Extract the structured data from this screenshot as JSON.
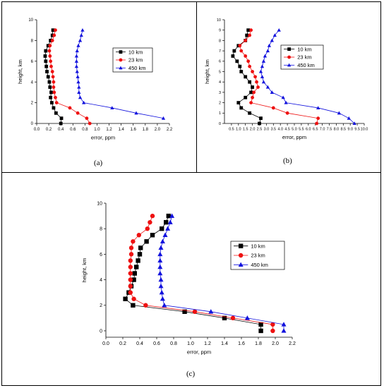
{
  "captions": {
    "a": "(a)",
    "b": "(b)",
    "c": "(c)"
  },
  "chart_data": [
    {
      "type": "line",
      "xlabel": "error, ppm",
      "ylabel": "height, km",
      "xlim": [
        0.0,
        2.2
      ],
      "ylim": [
        0,
        10
      ],
      "xticks": [
        "0.0",
        "0.2",
        "0.4",
        "0.6",
        "0.8",
        "1.0",
        "1.2",
        "1.4",
        "1.6",
        "1.8",
        "2.0",
        "2.2"
      ],
      "yticks": [
        "0",
        "2",
        "4",
        "6",
        "8",
        "10"
      ],
      "legend_position": "upper-right",
      "series": [
        {
          "name": "10 km",
          "color": "#000000",
          "marker": "square",
          "y": [
            0,
            0.5,
            1,
            1.5,
            2,
            2.5,
            3,
            3.5,
            4,
            4.5,
            5,
            5.5,
            6,
            6.5,
            7,
            7.5,
            8,
            8.5,
            9
          ],
          "x": [
            0.4,
            0.41,
            0.32,
            0.28,
            0.25,
            0.23,
            0.24,
            0.22,
            0.21,
            0.19,
            0.17,
            0.16,
            0.15,
            0.14,
            0.15,
            0.19,
            0.23,
            0.26,
            0.27
          ]
        },
        {
          "name": "23 km",
          "color": "#ee1111",
          "marker": "circle",
          "y": [
            0,
            0.5,
            1,
            1.5,
            2,
            2.5,
            3,
            3.5,
            4,
            4.5,
            5,
            5.5,
            6,
            6.5,
            7,
            7.5,
            8,
            8.5,
            9
          ],
          "x": [
            0.88,
            0.83,
            0.68,
            0.55,
            0.33,
            0.31,
            0.29,
            0.28,
            0.28,
            0.27,
            0.26,
            0.24,
            0.23,
            0.22,
            0.21,
            0.22,
            0.26,
            0.29,
            0.31
          ]
        },
        {
          "name": "450 km",
          "color": "#1111dd",
          "marker": "triangle",
          "y": [
            0.5,
            1,
            1.5,
            2,
            2.5,
            3,
            3.5,
            4,
            4.5,
            5,
            5.5,
            6,
            6.5,
            7,
            7.5,
            8,
            8.5,
            9
          ],
          "x": [
            2.1,
            1.65,
            1.25,
            0.78,
            0.72,
            0.7,
            0.7,
            0.69,
            0.68,
            0.67,
            0.66,
            0.66,
            0.66,
            0.67,
            0.69,
            0.72,
            0.74,
            0.76
          ]
        }
      ]
    },
    {
      "type": "line",
      "xlabel": "error, ppm",
      "ylabel": "height, km",
      "xlim": [
        0.0,
        10.0
      ],
      "ylim": [
        0,
        10
      ],
      "xticks": [
        "0.5",
        "1.0",
        "1.5",
        "2.0",
        "2.5",
        "3.0",
        "3.5",
        "4.0",
        "4.5",
        "5.0",
        "5.5",
        "6.0",
        "6.5",
        "7.0",
        "7.5",
        "8.0",
        "8.5",
        "9.0",
        "9.5",
        "10.0"
      ],
      "yticks": [
        "0",
        "1",
        "2",
        "3",
        "4",
        "5",
        "6",
        "7",
        "8",
        "9",
        "10"
      ],
      "legend_position": "upper-right",
      "series": [
        {
          "name": "10 km",
          "color": "#000000",
          "marker": "square",
          "y": [
            0,
            0.5,
            1,
            1.5,
            2,
            2.5,
            3,
            3.5,
            4,
            4.5,
            5,
            5.5,
            6,
            6.5,
            7,
            7.5,
            8,
            8.5,
            9
          ],
          "x": [
            2.5,
            2.6,
            1.8,
            1.2,
            1.0,
            1.5,
            1.9,
            2.0,
            1.8,
            1.5,
            1.2,
            1.1,
            0.9,
            0.6,
            0.7,
            1.0,
            1.5,
            1.6,
            1.7
          ]
        },
        {
          "name": "23 km",
          "color": "#ee1111",
          "marker": "circle",
          "y": [
            0,
            0.5,
            1,
            1.5,
            2,
            2.5,
            3,
            3.5,
            4,
            4.5,
            5,
            5.5,
            6,
            6.5,
            7,
            7.5,
            8,
            8.5,
            9
          ],
          "x": [
            6.6,
            6.7,
            4.5,
            3.5,
            1.9,
            2.0,
            2.1,
            2.4,
            2.3,
            2.2,
            2.0,
            1.8,
            1.7,
            1.5,
            1.2,
            1.1,
            1.5,
            1.8,
            1.9
          ]
        },
        {
          "name": "450 km",
          "color": "#1111dd",
          "marker": "triangle",
          "y": [
            0,
            0.5,
            1,
            1.5,
            2,
            2.5,
            3,
            3.5,
            4,
            4.5,
            5,
            5.5,
            6,
            6.5,
            7,
            7.5,
            8,
            8.5,
            9
          ],
          "x": [
            9.3,
            8.9,
            8.2,
            6.7,
            4.4,
            4.2,
            3.4,
            3.1,
            2.8,
            2.7,
            2.6,
            2.7,
            2.8,
            2.9,
            3.1,
            3.2,
            3.4,
            3.6,
            3.9
          ]
        }
      ]
    },
    {
      "type": "line",
      "xlabel": "error, ppm",
      "ylabel": "height, km",
      "xlim": [
        0.0,
        2.2
      ],
      "ylim": [
        -0.5,
        10
      ],
      "xticks": [
        "0.0",
        "0.2",
        "0.4",
        "0.6",
        "0.8",
        "1.0",
        "1.2",
        "1.4",
        "1.6",
        "1.8",
        "2.0",
        "2.2"
      ],
      "yticks": [
        "0",
        "2",
        "4",
        "6",
        "8",
        "10"
      ],
      "legend_position": "center-right",
      "series": [
        {
          "name": "10 km",
          "color": "#000000",
          "marker": "square",
          "y": [
            0,
            0.5,
            1,
            1.5,
            2,
            2.5,
            3,
            3.5,
            4,
            4.5,
            5,
            5.5,
            6,
            6.5,
            7,
            7.5,
            8,
            8.5,
            9
          ],
          "x": [
            1.83,
            1.83,
            1.4,
            0.93,
            0.32,
            0.23,
            0.27,
            0.3,
            0.33,
            0.34,
            0.36,
            0.38,
            0.4,
            0.41,
            0.48,
            0.55,
            0.66,
            0.71,
            0.74
          ]
        },
        {
          "name": "23 km",
          "color": "#ee1111",
          "marker": "circle",
          "y": [
            0,
            0.5,
            1,
            1.5,
            2,
            2.5,
            3,
            3.5,
            4,
            4.5,
            5,
            5.5,
            6,
            6.5,
            7,
            7.5,
            8,
            8.5,
            9
          ],
          "x": [
            1.97,
            1.97,
            1.5,
            1.05,
            0.47,
            0.33,
            0.29,
            0.29,
            0.29,
            0.29,
            0.29,
            0.29,
            0.3,
            0.3,
            0.32,
            0.39,
            0.49,
            0.52,
            0.55
          ]
        },
        {
          "name": "450 km",
          "color": "#1111dd",
          "marker": "triangle",
          "y": [
            0,
            0.5,
            1,
            1.5,
            2,
            2.5,
            3,
            3.5,
            4,
            4.5,
            5,
            5.5,
            6,
            6.5,
            7,
            7.5,
            8,
            8.5,
            9
          ],
          "x": [
            2.1,
            2.1,
            1.67,
            1.24,
            0.69,
            0.67,
            0.66,
            0.65,
            0.65,
            0.64,
            0.64,
            0.64,
            0.64,
            0.65,
            0.67,
            0.7,
            0.73,
            0.76,
            0.78
          ]
        }
      ]
    }
  ]
}
